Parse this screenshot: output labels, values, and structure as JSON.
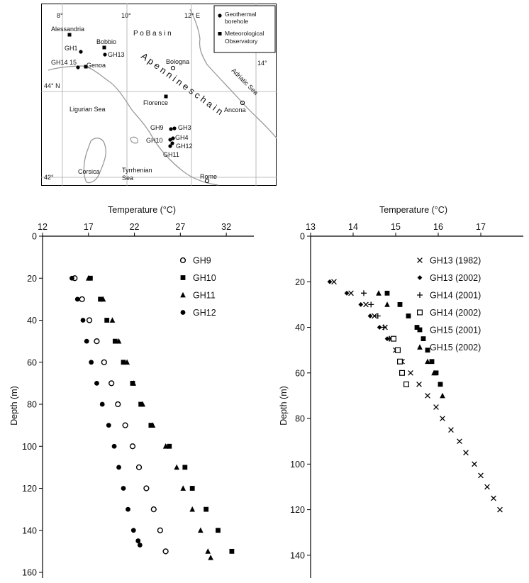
{
  "map": {
    "longitudes": [
      "8°",
      "10°",
      "12° E",
      "14°"
    ],
    "latitudes": [
      "44° N",
      "42°"
    ],
    "legend": [
      {
        "symbol": "circle",
        "label_lines": [
          "Geothermal",
          "borehole"
        ]
      },
      {
        "symbol": "square",
        "label_lines": [
          "Meteorological",
          "Observatory"
        ]
      }
    ],
    "regions": {
      "po_basin": "P o   B a s i n",
      "apennines": "A p e n n i n e s   c h a i n",
      "ligurian": "Ligurian Sea",
      "adriatic": "Adriatic Sea",
      "tyrrhenian_1": "Tyrrhenian",
      "tyrrhenian_2": "Sea",
      "corsica": "Corsica"
    },
    "cities": {
      "alessandria": "Alessandria",
      "bobbio": "Bobbio",
      "genoa": "Genoa",
      "bologna": "Bologna",
      "florence": "Florence",
      "ancona": "Ancona",
      "rome": "Rome"
    },
    "boreholes": {
      "gh1": "GH1",
      "gh13": "GH13",
      "gh14_15": "GH14 15",
      "gh9": "GH9",
      "gh3": "GH3",
      "gh4": "GH4",
      "gh10": "GH10",
      "gh12": "GH12",
      "gh11": "GH11"
    }
  },
  "chart_data": [
    {
      "type": "scatter",
      "xlabel": "Temperature (°C)",
      "ylabel": "Depth (m)",
      "xlim": [
        12,
        35
      ],
      "ylim": [
        0,
        160
      ],
      "x_ticks": [
        12,
        17,
        22,
        27,
        32
      ],
      "y_ticks": [
        0,
        20,
        40,
        60,
        80,
        100,
        120,
        140,
        160
      ],
      "y_inverted": true,
      "x_axis_position": "top",
      "legend_position": "top-right",
      "series": [
        {
          "name": "GH9",
          "marker": "circle-open",
          "x": [
            15.5,
            16.3,
            17.1,
            17.9,
            18.7,
            19.5,
            20.2,
            21.0,
            21.8,
            22.5,
            23.3,
            24.1,
            24.8,
            25.4
          ],
          "y": [
            20,
            30,
            40,
            50,
            60,
            70,
            80,
            90,
            100,
            110,
            120,
            130,
            140,
            150
          ]
        },
        {
          "name": "GH10",
          "marker": "square",
          "x": [
            17.2,
            18.3,
            19.0,
            19.9,
            20.8,
            21.8,
            22.7,
            23.8,
            25.8,
            27.5,
            28.3,
            29.8,
            31.1,
            32.6
          ],
          "y": [
            20,
            30,
            40,
            50,
            60,
            70,
            80,
            90,
            100,
            110,
            120,
            130,
            140,
            150
          ]
        },
        {
          "name": "GH11",
          "marker": "triangle",
          "x": [
            17.0,
            18.6,
            19.6,
            20.3,
            21.2,
            21.9,
            22.9,
            24.0,
            25.4,
            26.6,
            27.3,
            28.3,
            29.2,
            30.0,
            30.3
          ],
          "y": [
            20,
            30,
            40,
            50,
            60,
            70,
            80,
            90,
            100,
            110,
            120,
            130,
            140,
            150,
            153
          ]
        },
        {
          "name": "GH12",
          "marker": "circle-filled",
          "x": [
            15.2,
            15.8,
            16.4,
            16.8,
            17.3,
            17.9,
            18.5,
            19.2,
            19.8,
            20.3,
            20.8,
            21.3,
            21.9,
            22.4,
            22.6
          ],
          "y": [
            20,
            30,
            40,
            50,
            60,
            70,
            80,
            90,
            100,
            110,
            120,
            130,
            140,
            145,
            147
          ]
        }
      ]
    },
    {
      "type": "scatter",
      "xlabel": "Temperature (°C)",
      "ylabel": "Depth (m)",
      "xlim": [
        13,
        18
      ],
      "ylim": [
        0,
        150
      ],
      "x_ticks": [
        13,
        14,
        15,
        16,
        17
      ],
      "y_ticks": [
        0,
        20,
        40,
        60,
        80,
        100,
        120,
        140
      ],
      "y_inverted": true,
      "x_axis_position": "top",
      "legend_position": "top-right",
      "series": [
        {
          "name": "GH13 (1982)",
          "marker": "cross",
          "x": [
            13.55,
            13.95,
            14.3,
            14.5,
            14.75,
            14.9,
            15.0,
            15.15,
            15.35,
            15.55,
            15.75,
            15.95,
            16.1,
            16.3,
            16.5,
            16.65,
            16.85,
            17.0,
            17.15,
            17.3,
            17.45
          ],
          "y": [
            20,
            25,
            30,
            35,
            40,
            45,
            50,
            55,
            60,
            65,
            70,
            75,
            80,
            85,
            90,
            95,
            100,
            105,
            110,
            115,
            120
          ]
        },
        {
          "name": "GH13 (2002)",
          "marker": "diamond",
          "x": [
            13.45,
            13.85,
            14.18,
            14.4,
            14.62,
            14.8
          ],
          "y": [
            20,
            25,
            30,
            35,
            40,
            45
          ]
        },
        {
          "name": "GH14 (2001)",
          "marker": "plus",
          "x": [
            14.25,
            14.42,
            14.58,
            14.72,
            14.85
          ],
          "y": [
            25,
            30,
            35,
            40,
            45
          ]
        },
        {
          "name": "GH14 (2002)",
          "marker": "square-open",
          "x": [
            14.95,
            15.05,
            15.1,
            15.15,
            15.25
          ],
          "y": [
            45,
            50,
            55,
            60,
            65
          ]
        },
        {
          "name": "GH15 (2001)",
          "marker": "square",
          "x": [
            14.8,
            15.1,
            15.3,
            15.5,
            15.65,
            15.75,
            15.85,
            15.95,
            16.05
          ],
          "y": [
            25,
            30,
            35,
            40,
            45,
            50,
            55,
            60,
            65
          ]
        },
        {
          "name": "GH15 (2002)",
          "marker": "triangle",
          "x": [
            14.6,
            14.8,
            15.75,
            15.9,
            16.1
          ],
          "y": [
            25,
            30,
            55,
            60,
            70
          ]
        }
      ]
    }
  ]
}
